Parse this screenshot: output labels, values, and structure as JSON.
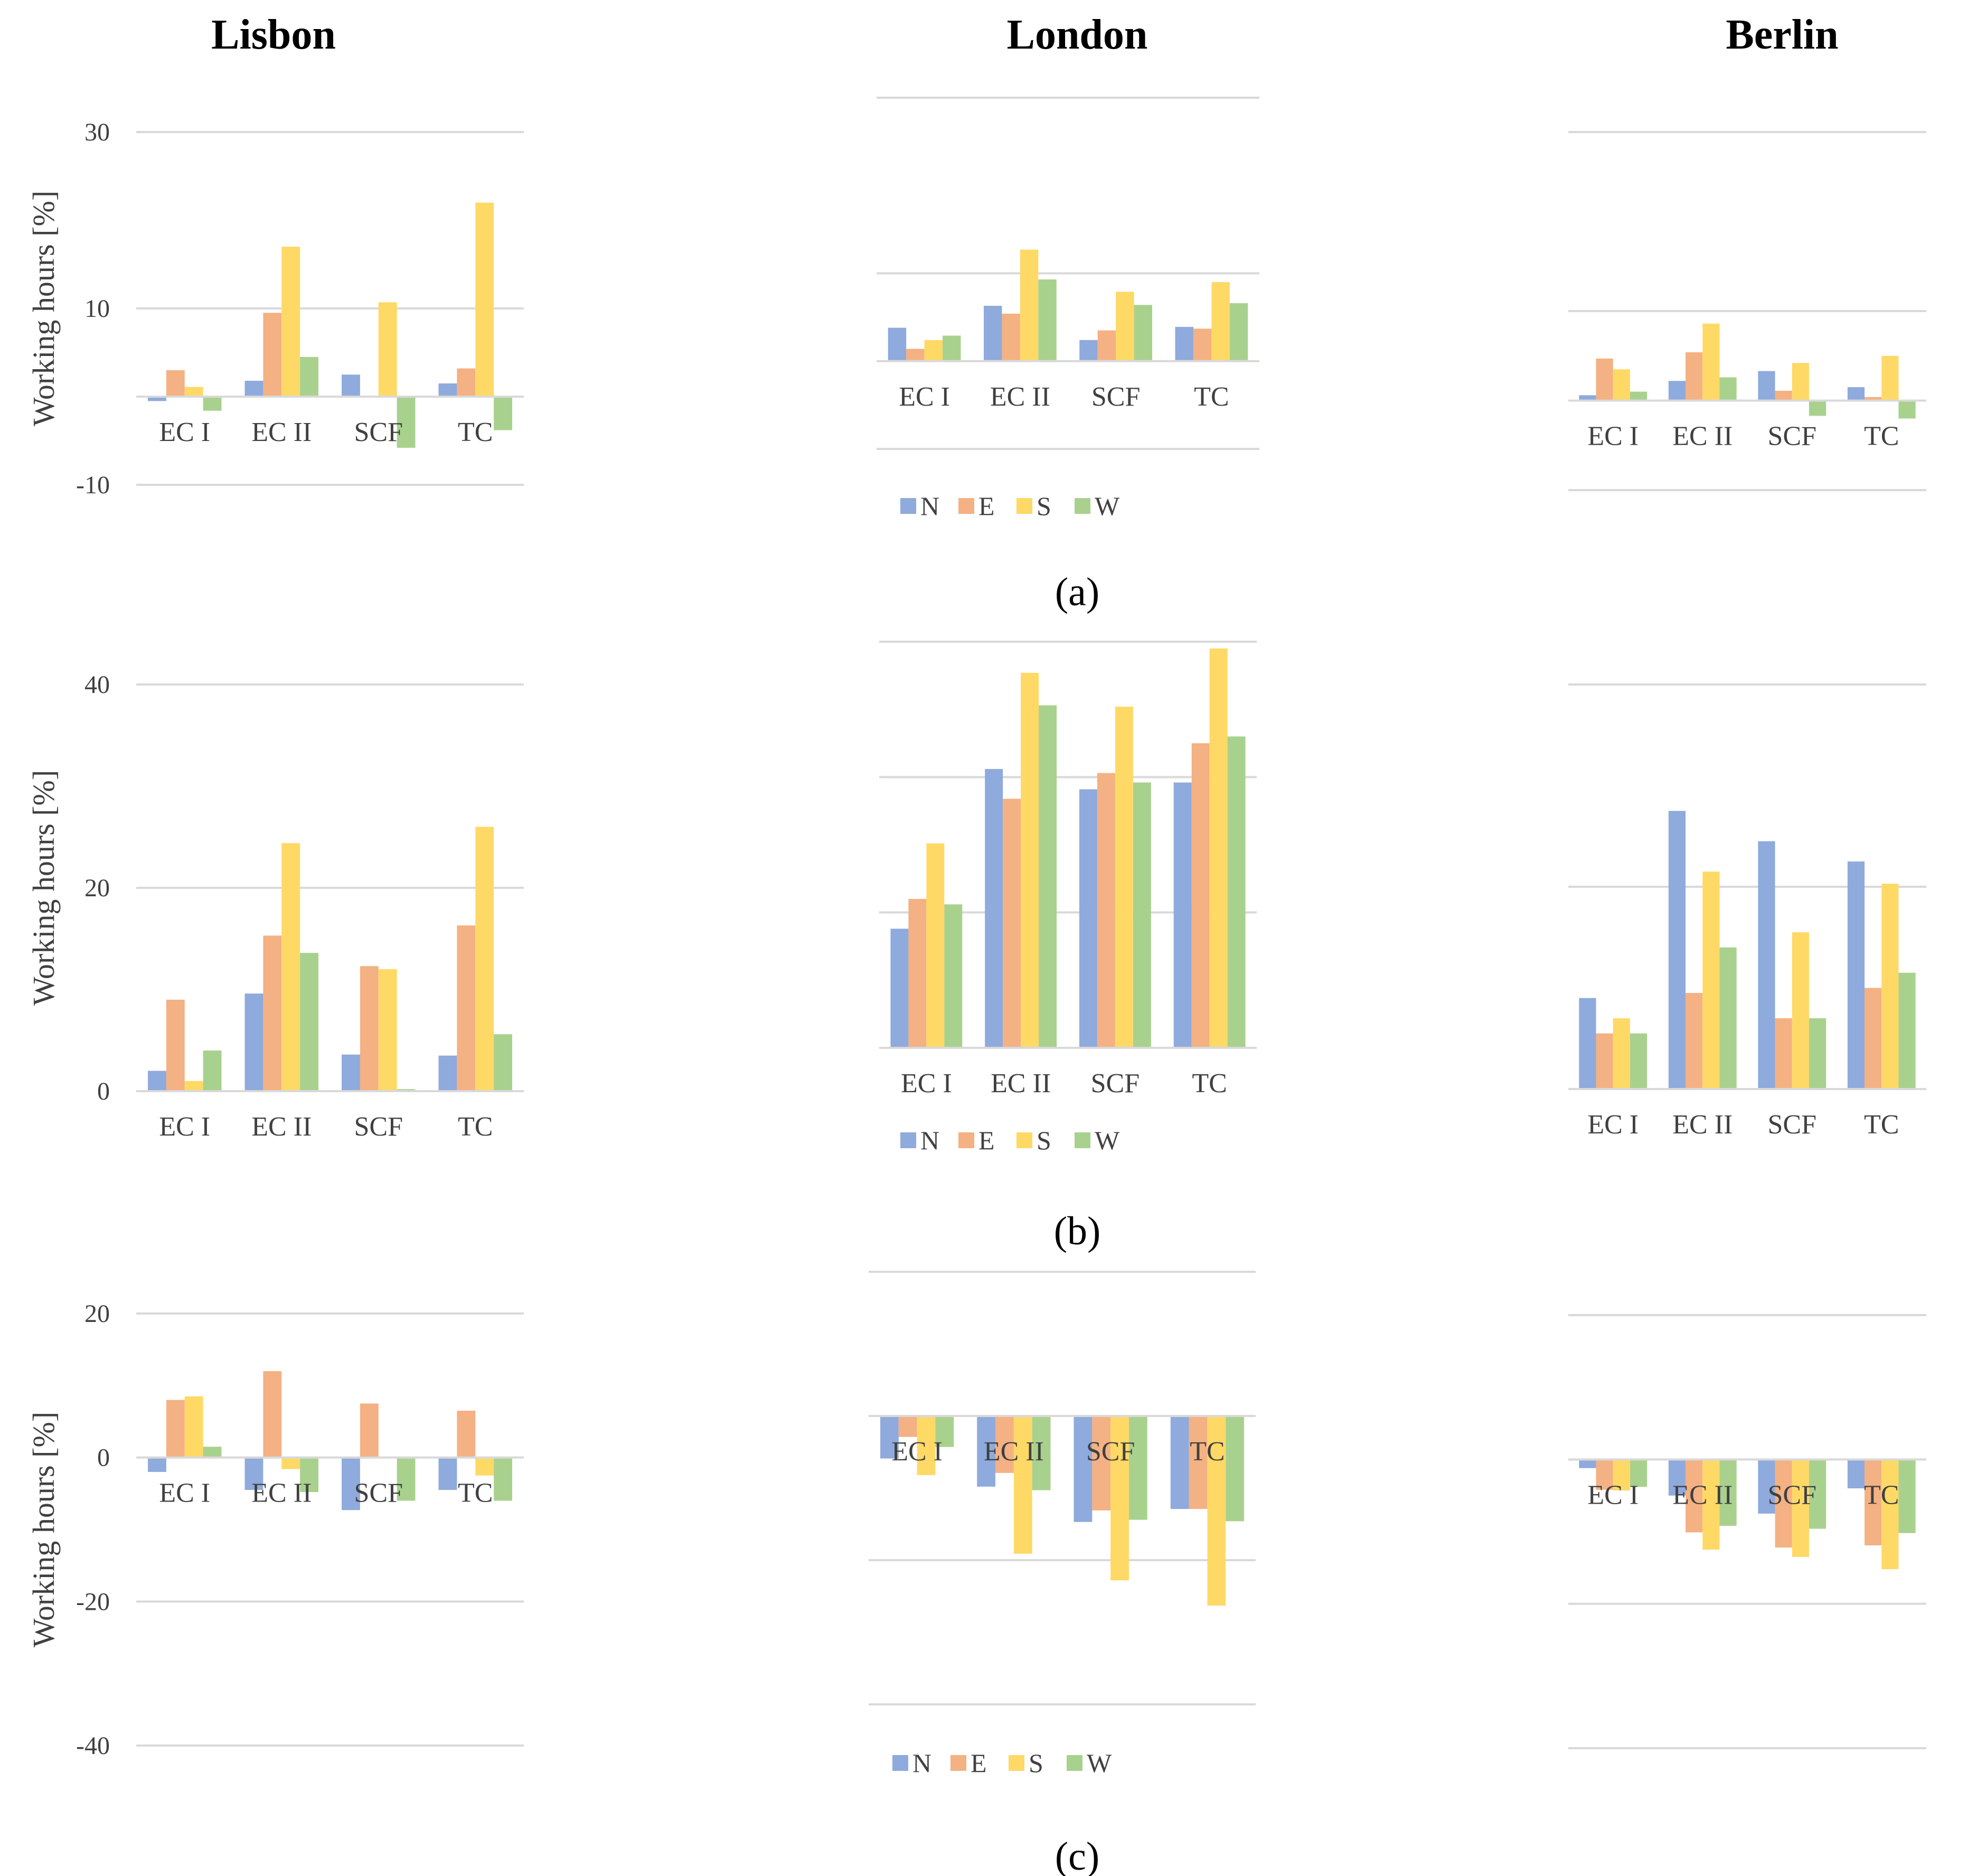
{
  "cities": [
    "Lisbon",
    "London",
    "Berlin"
  ],
  "panel_labels": [
    "(a)",
    "(b)",
    "(c)"
  ],
  "series_names": [
    "N",
    "E",
    "S",
    "W"
  ],
  "colors": {
    "N": "#8faadc",
    "E": "#f4b183",
    "S": "#ffd966",
    "W": "#a9d18e"
  },
  "chart_data": [
    {
      "type": "bar",
      "panel": "a",
      "city": "Lisbon",
      "ylabel": "Working hours [%]",
      "ylim": [
        -10,
        30
      ],
      "yticks": [
        "-10",
        "10",
        "30"
      ],
      "categories": [
        "EC I",
        "EC II",
        "SCF",
        "TC"
      ],
      "series": [
        {
          "name": "N",
          "values": [
            -0.5,
            1.8,
            2.5,
            1.5
          ]
        },
        {
          "name": "E",
          "values": [
            3,
            9.5,
            0,
            3.2
          ]
        },
        {
          "name": "S",
          "values": [
            1.1,
            17,
            10.7,
            22
          ]
        },
        {
          "name": "W",
          "values": [
            -1.6,
            4.5,
            -5.8,
            -3.8
          ]
        }
      ]
    },
    {
      "type": "bar",
      "panel": "a",
      "city": "London",
      "ylabel": "",
      "ylim": [
        -10,
        30
      ],
      "yticks": [],
      "categories": [
        "EC I",
        "EC II",
        "SCF",
        "TC"
      ],
      "series": [
        {
          "name": "N",
          "values": [
            3.8,
            6.3,
            2.4,
            3.9
          ]
        },
        {
          "name": "E",
          "values": [
            1.4,
            5.4,
            3.5,
            3.7
          ]
        },
        {
          "name": "S",
          "values": [
            2.4,
            12.7,
            7.9,
            9
          ]
        },
        {
          "name": "W",
          "values": [
            2.9,
            9.3,
            6.4,
            6.6
          ]
        }
      ]
    },
    {
      "type": "bar",
      "panel": "a",
      "city": "Berlin",
      "ylabel": "",
      "ylim": [
        -10,
        30
      ],
      "yticks": [],
      "categories": [
        "EC I",
        "EC II",
        "SCF",
        "TC"
      ],
      "series": [
        {
          "name": "N",
          "values": [
            0.6,
            2.2,
            3.3,
            1.5
          ]
        },
        {
          "name": "E",
          "values": [
            4.7,
            5.4,
            1.1,
            0.4
          ]
        },
        {
          "name": "S",
          "values": [
            3.5,
            8.6,
            4.2,
            5
          ]
        },
        {
          "name": "W",
          "values": [
            1,
            2.6,
            -1.7,
            -2
          ]
        }
      ]
    },
    {
      "type": "bar",
      "panel": "b",
      "city": "Lisbon",
      "ylabel": "Working hours [%]",
      "ylim": [
        0,
        40
      ],
      "yticks": [
        "0",
        "20",
        "40"
      ],
      "categories": [
        "EC I",
        "EC II",
        "SCF",
        "TC"
      ],
      "series": [
        {
          "name": "N",
          "values": [
            2,
            9.6,
            3.6,
            3.5
          ]
        },
        {
          "name": "E",
          "values": [
            9,
            15.3,
            12.3,
            16.3
          ]
        },
        {
          "name": "S",
          "values": [
            1,
            24.4,
            12,
            26
          ]
        },
        {
          "name": "W",
          "values": [
            4,
            13.6,
            0.2,
            5.6
          ]
        }
      ]
    },
    {
      "type": "bar",
      "panel": "b",
      "city": "London",
      "ylabel": "",
      "ylim": [
        0,
        40
      ],
      "yticks": [],
      "categories": [
        "EC I",
        "EC II",
        "SCF",
        "TC"
      ],
      "series": [
        {
          "name": "N",
          "values": [
            8.8,
            20.6,
            19.1,
            19.6
          ]
        },
        {
          "name": "E",
          "values": [
            11,
            18.4,
            20.3,
            22.5
          ]
        },
        {
          "name": "S",
          "values": [
            15.1,
            27.7,
            25.2,
            29.5
          ]
        },
        {
          "name": "W",
          "values": [
            10.6,
            25.3,
            19.6,
            23
          ]
        }
      ]
    },
    {
      "type": "bar",
      "panel": "b",
      "city": "Berlin",
      "ylabel": "",
      "ylim": [
        0,
        40
      ],
      "yticks": [],
      "categories": [
        "EC I",
        "EC II",
        "SCF",
        "TC"
      ],
      "series": [
        {
          "name": "N",
          "values": [
            9,
            27.5,
            24.5,
            22.5
          ]
        },
        {
          "name": "E",
          "values": [
            5.5,
            9.5,
            7,
            10
          ]
        },
        {
          "name": "S",
          "values": [
            7,
            21.5,
            15.5,
            20.3
          ]
        },
        {
          "name": "W",
          "values": [
            5.5,
            14,
            7,
            11.5
          ]
        }
      ]
    },
    {
      "type": "bar",
      "panel": "c",
      "city": "Lisbon",
      "ylabel": "Working hours [%]",
      "ylim": [
        -40,
        20
      ],
      "yticks": [
        "-40",
        "-20",
        "0",
        "20"
      ],
      "categories": [
        "EC I",
        "EC II",
        "SCF",
        "TC"
      ],
      "series": [
        {
          "name": "N",
          "values": [
            -2,
            -4.5,
            -7.3,
            -4.5
          ]
        },
        {
          "name": "E",
          "values": [
            8,
            12,
            7.5,
            6.5
          ]
        },
        {
          "name": "S",
          "values": [
            8.5,
            -1.6,
            0,
            -2.5
          ]
        },
        {
          "name": "W",
          "values": [
            1.5,
            -4.8,
            -6,
            -6
          ]
        }
      ]
    },
    {
      "type": "bar",
      "panel": "c",
      "city": "London",
      "ylabel": "",
      "ylim": [
        -40,
        20
      ],
      "yticks": [],
      "categories": [
        "EC I",
        "EC II",
        "SCF",
        "TC"
      ],
      "series": [
        {
          "name": "N",
          "values": [
            -5.9,
            -9.8,
            -14.7,
            -12.9
          ]
        },
        {
          "name": "E",
          "values": [
            -2.9,
            -7.9,
            -13.1,
            -12.9
          ]
        },
        {
          "name": "S",
          "values": [
            -8.2,
            -19.1,
            -22.8,
            -26.3
          ]
        },
        {
          "name": "W",
          "values": [
            -4.3,
            -10.3,
            -14.4,
            -14.6
          ]
        }
      ]
    },
    {
      "type": "bar",
      "panel": "c",
      "city": "Berlin",
      "ylabel": "",
      "ylim": [
        -40,
        20
      ],
      "yticks": [],
      "categories": [
        "EC I",
        "EC II",
        "SCF",
        "TC"
      ],
      "series": [
        {
          "name": "N",
          "values": [
            -1.2,
            -5,
            -7.5,
            -4
          ]
        },
        {
          "name": "E",
          "values": [
            -4.2,
            -10.1,
            -12.2,
            -11.9
          ]
        },
        {
          "name": "S",
          "values": [
            -4.3,
            -12.5,
            -13.5,
            -15.2
          ]
        },
        {
          "name": "W",
          "values": [
            -3.8,
            -9.2,
            -9.6,
            -10.2
          ]
        }
      ]
    }
  ]
}
